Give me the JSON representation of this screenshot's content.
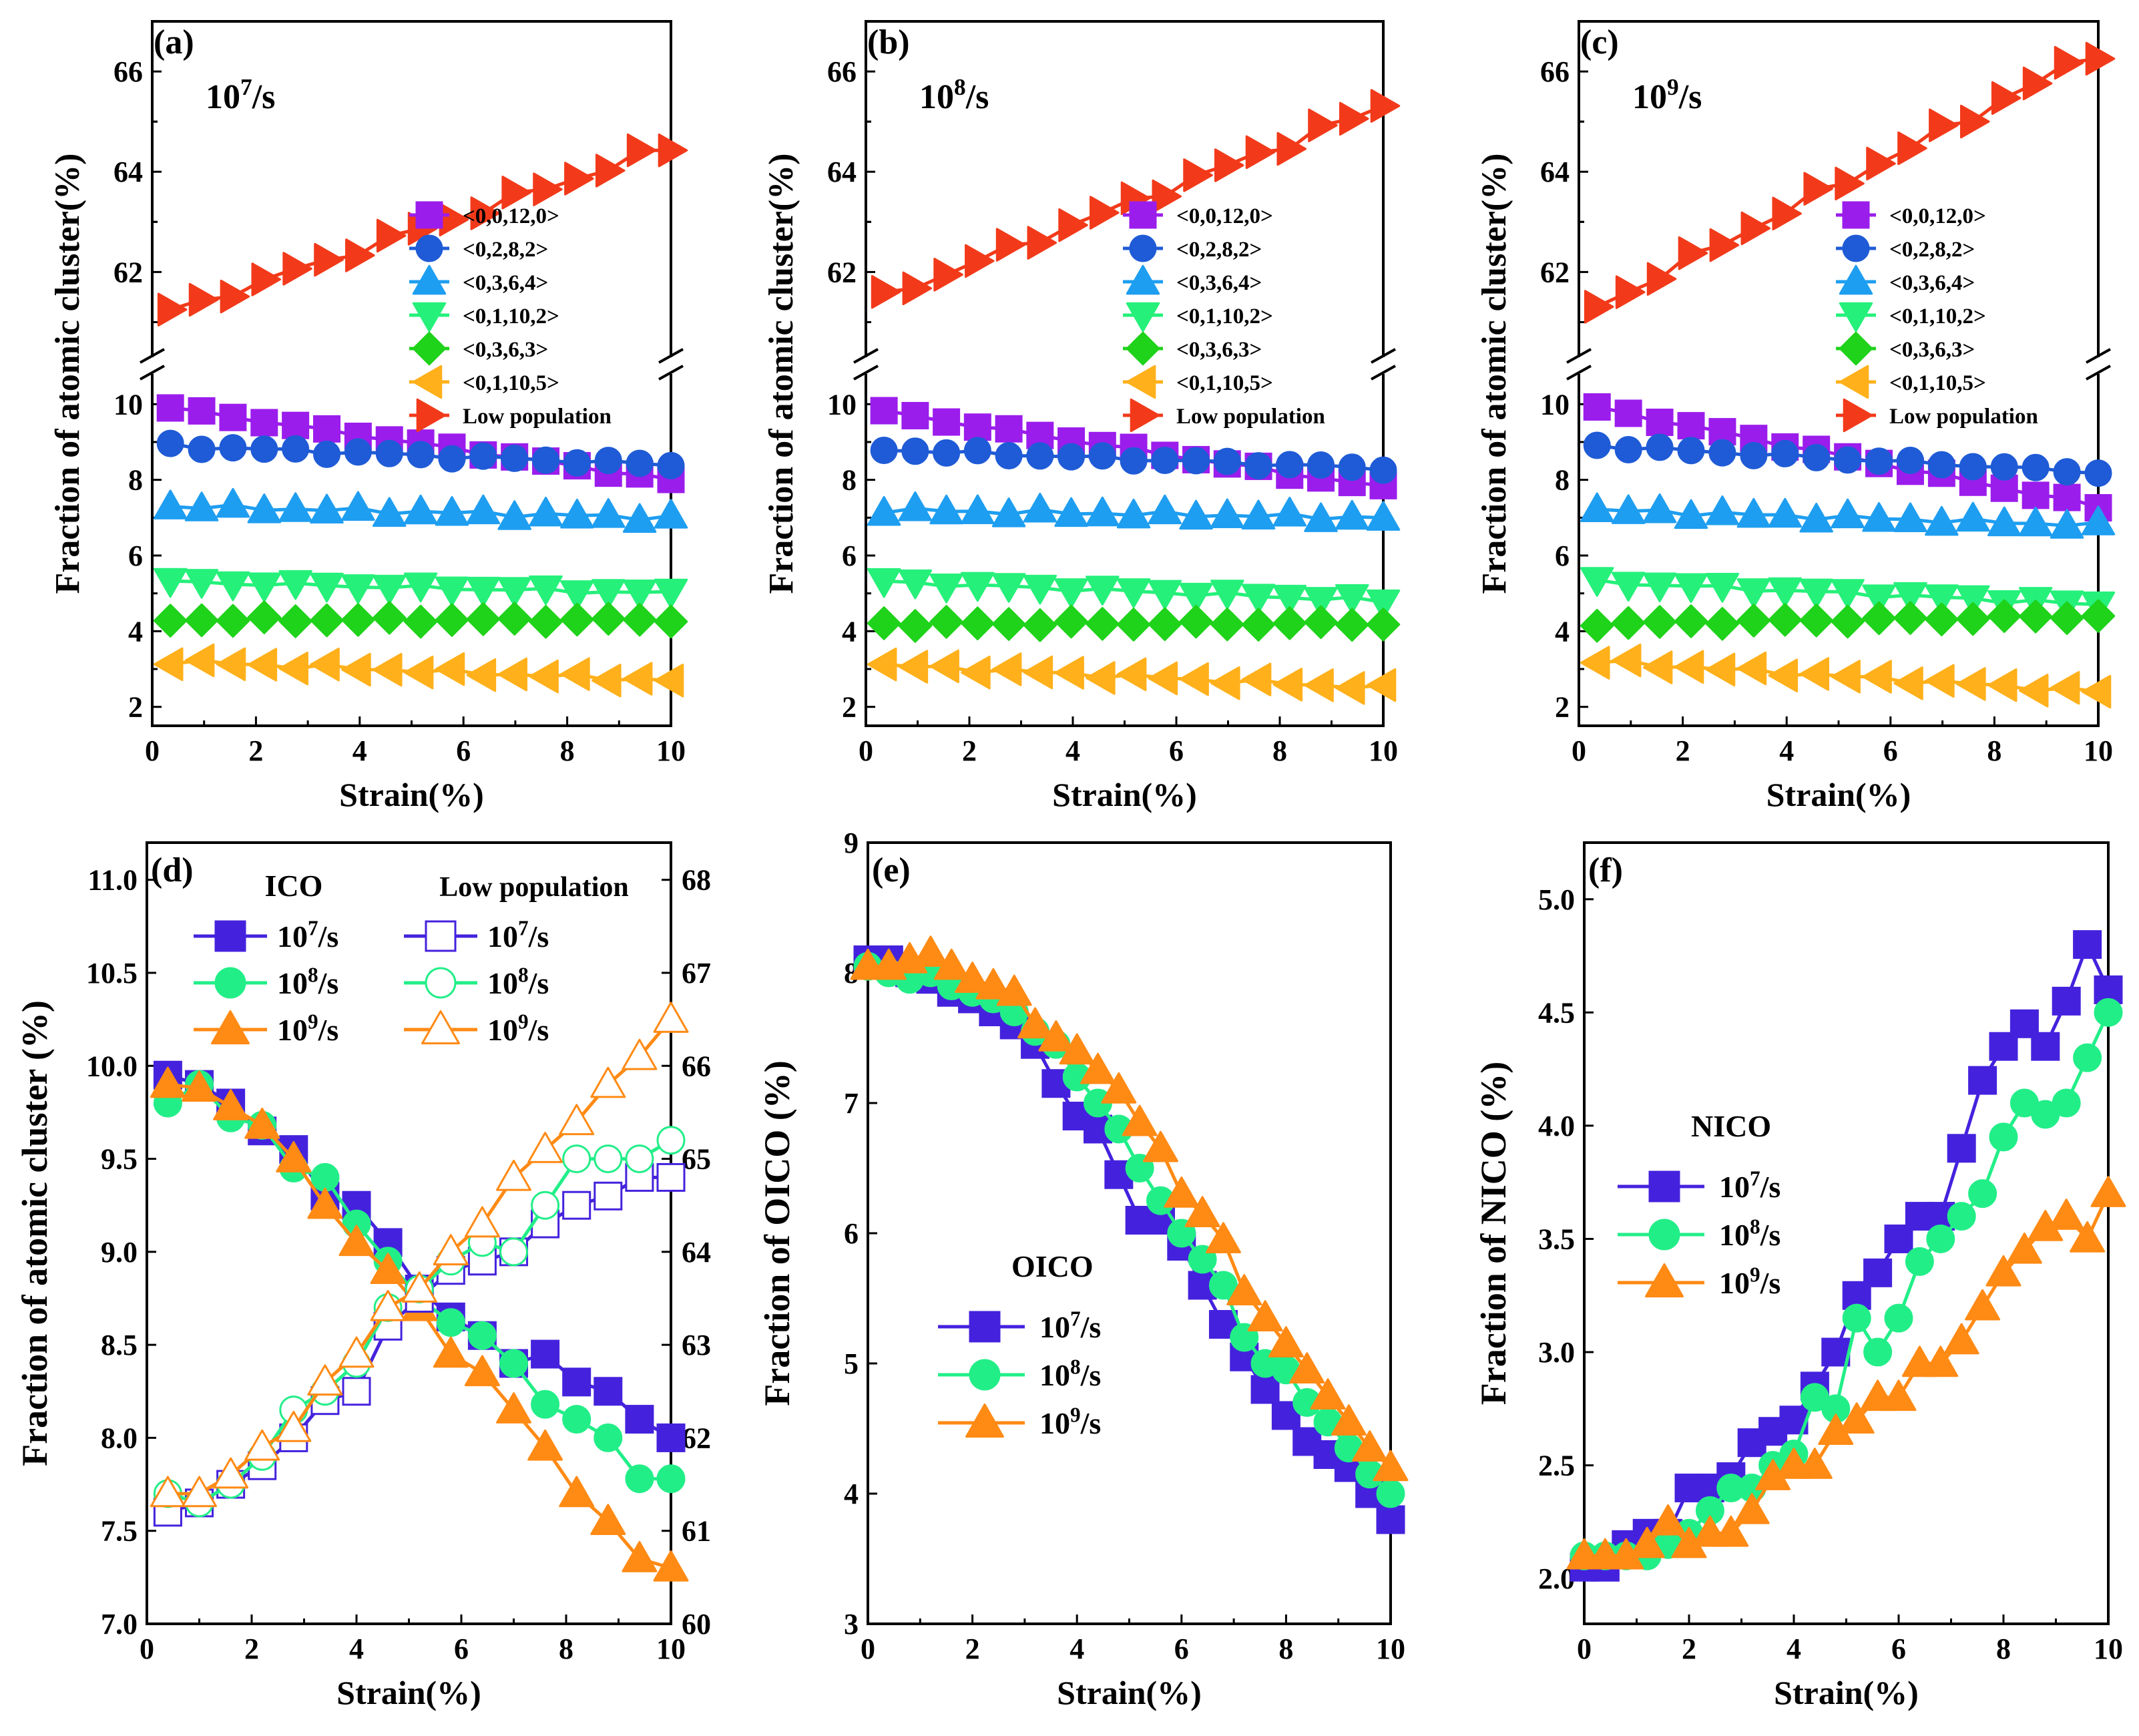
{
  "colors": {
    "purple": "#9b1dec",
    "blue": "#1f5bd6",
    "cyan": "#1e9ef0",
    "green": "#25f07a",
    "darkgreen": "#1fd21a",
    "orange": "#ffb01a",
    "red": "#f23a1a",
    "violet": "#4422dd",
    "mint": "#22ee88",
    "amber": "#ff8a14"
  },
  "chart_data": [
    {
      "panel": "(a)",
      "type": "line",
      "rate_label": "10",
      "rate_exp": "7",
      "rate_unit": "/s",
      "xlabel": "Strain(%)",
      "ylabel": "Fraction of atomic cluster(%)",
      "xlim": [
        0,
        10
      ],
      "xticks": [
        "0",
        "2",
        "4",
        "6",
        "8",
        "10"
      ],
      "ylim_bottom": [
        1.5,
        10.8
      ],
      "yticks_bottom": [
        "2",
        "4",
        "6",
        "8",
        "10"
      ],
      "ylim_top": [
        60.3,
        67
      ],
      "yticks_top": [
        "62",
        "64",
        "66"
      ],
      "legend": [
        "<0,0,12,0>",
        "<0,2,8,2>",
        "<0,3,6,4>",
        "<0,1,10,2>",
        "<0,3,6,3>",
        "<0,1,10,5>",
        "Low population"
      ],
      "series": [
        {
          "name": "<0,0,12,0>",
          "axis": "bottom",
          "marker": "square",
          "color": "purple",
          "start": 9.9,
          "end": 8.0
        },
        {
          "name": "<0,2,8,2>",
          "axis": "bottom",
          "marker": "circle",
          "color": "blue",
          "start": 8.9,
          "end": 8.4
        },
        {
          "name": "<0,3,6,4>",
          "axis": "bottom",
          "marker": "tri-up",
          "color": "cyan",
          "start": 7.3,
          "end": 7.0
        },
        {
          "name": "<0,1,10,2>",
          "axis": "bottom",
          "marker": "tri-down",
          "color": "green",
          "start": 5.3,
          "end": 5.0
        },
        {
          "name": "<0,3,6,3>",
          "axis": "bottom",
          "marker": "diamond",
          "color": "darkgreen",
          "start": 4.3,
          "end": 4.3
        },
        {
          "name": "<0,1,10,5>",
          "axis": "bottom",
          "marker": "tri-left",
          "color": "orange",
          "start": 3.2,
          "end": 2.7
        },
        {
          "name": "Low population",
          "axis": "top",
          "marker": "tri-right",
          "color": "red",
          "start": 61.2,
          "end": 64.5
        }
      ]
    },
    {
      "panel": "(b)",
      "type": "line",
      "rate_label": "10",
      "rate_exp": "8",
      "rate_unit": "/s",
      "xlabel": "Strain(%)",
      "ylabel": "Fraction of atomic cluster(%)",
      "xlim": [
        0,
        10
      ],
      "xticks": [
        "0",
        "2",
        "4",
        "6",
        "8",
        "10"
      ],
      "ylim_bottom": [
        1.5,
        10.8
      ],
      "yticks_bottom": [
        "2",
        "4",
        "6",
        "8",
        "10"
      ],
      "ylim_top": [
        60.3,
        67
      ],
      "yticks_top": [
        "62",
        "64",
        "66"
      ],
      "legend": [
        "<0,0,12,0>",
        "<0,2,8,2>",
        "<0,3,6,4>",
        "<0,1,10,2>",
        "<0,3,6,3>",
        "<0,1,10,5>",
        "Low population"
      ],
      "series": [
        {
          "name": "<0,0,12,0>",
          "axis": "bottom",
          "marker": "square",
          "color": "purple",
          "start": 9.8,
          "end": 7.8
        },
        {
          "name": "<0,2,8,2>",
          "axis": "bottom",
          "marker": "circle",
          "color": "blue",
          "start": 8.8,
          "end": 8.3
        },
        {
          "name": "<0,3,6,4>",
          "axis": "bottom",
          "marker": "tri-up",
          "color": "cyan",
          "start": 7.2,
          "end": 7.0
        },
        {
          "name": "<0,1,10,2>",
          "axis": "bottom",
          "marker": "tri-down",
          "color": "green",
          "start": 5.3,
          "end": 4.8
        },
        {
          "name": "<0,3,6,3>",
          "axis": "bottom",
          "marker": "diamond",
          "color": "darkgreen",
          "start": 4.2,
          "end": 4.2
        },
        {
          "name": "<0,1,10,5>",
          "axis": "bottom",
          "marker": "tri-left",
          "color": "orange",
          "start": 3.1,
          "end": 2.5
        },
        {
          "name": "Low population",
          "axis": "top",
          "marker": "tri-right",
          "color": "red",
          "start": 61.5,
          "end": 65.3
        }
      ]
    },
    {
      "panel": "(c)",
      "type": "line",
      "rate_label": "10",
      "rate_exp": "9",
      "rate_unit": "/s",
      "xlabel": "Strain(%)",
      "ylabel": "Fraction of atomic cluster(%)",
      "xlim": [
        0,
        10
      ],
      "xticks": [
        "0",
        "2",
        "4",
        "6",
        "8",
        "10"
      ],
      "ylim_bottom": [
        1.5,
        10.8
      ],
      "yticks_bottom": [
        "2",
        "4",
        "6",
        "8",
        "10"
      ],
      "ylim_top": [
        60.3,
        67
      ],
      "yticks_top": [
        "62",
        "64",
        "66"
      ],
      "legend": [
        "<0,0,12,0>",
        "<0,2,8,2>",
        "<0,3,6,4>",
        "<0,1,10,2>",
        "<0,3,6,3>",
        "<0,1,10,5>",
        "Low population"
      ],
      "series": [
        {
          "name": "<0,0,12,0>",
          "axis": "bottom",
          "marker": "square",
          "color": "purple",
          "start": 9.9,
          "end": 7.3
        },
        {
          "name": "<0,2,8,2>",
          "axis": "bottom",
          "marker": "circle",
          "color": "blue",
          "start": 8.9,
          "end": 8.2
        },
        {
          "name": "<0,3,6,4>",
          "axis": "bottom",
          "marker": "tri-up",
          "color": "cyan",
          "start": 7.2,
          "end": 6.8
        },
        {
          "name": "<0,1,10,2>",
          "axis": "bottom",
          "marker": "tri-down",
          "color": "green",
          "start": 5.3,
          "end": 4.7
        },
        {
          "name": "<0,3,6,3>",
          "axis": "bottom",
          "marker": "diamond",
          "color": "darkgreen",
          "start": 4.2,
          "end": 4.4
        },
        {
          "name": "<0,1,10,5>",
          "axis": "bottom",
          "marker": "tri-left",
          "color": "orange",
          "start": 3.2,
          "end": 2.4
        },
        {
          "name": "Low population",
          "axis": "top",
          "marker": "tri-right",
          "color": "red",
          "start": 61.3,
          "end": 66.4
        }
      ]
    },
    {
      "panel": "(d)",
      "type": "line",
      "xlabel": "Strain(%)",
      "ylabel": "Fraction of atomic cluster (%)",
      "xlim": [
        0,
        10
      ],
      "xticks": [
        "0",
        "2",
        "4",
        "6",
        "8",
        "10"
      ],
      "ylim": [
        7.0,
        11.2
      ],
      "yticks": [
        "7.0",
        "7.5",
        "8.0",
        "8.5",
        "9.0",
        "9.5",
        "10.0",
        "10.5",
        "11.0"
      ],
      "y2lim": [
        60,
        68.4
      ],
      "y2ticks": [
        "60",
        "61",
        "62",
        "63",
        "64",
        "65",
        "66",
        "67",
        "68"
      ],
      "legend_title_left": "ICO",
      "legend_title_right": "Low population",
      "legend_rate_base": "10",
      "legend_rate_unit": "/s",
      "x": [
        0.4,
        1.0,
        1.6,
        2.2,
        2.8,
        3.4,
        4.0,
        4.6,
        5.2,
        5.8,
        6.4,
        7.0,
        7.6,
        8.2,
        8.8,
        9.4,
        10.0
      ],
      "series": [
        {
          "name": "ICO 10^7/s",
          "axis": "left",
          "marker": "square",
          "filled": true,
          "color": "violet",
          "exp": "7",
          "values": [
            9.95,
            9.9,
            9.8,
            9.65,
            9.55,
            9.3,
            9.25,
            9.05,
            8.8,
            8.65,
            8.55,
            8.4,
            8.45,
            8.3,
            8.25,
            8.1,
            8.0
          ]
        },
        {
          "name": "ICO 10^8/s",
          "axis": "left",
          "marker": "circle",
          "filled": true,
          "color": "mint",
          "exp": "8",
          "values": [
            9.8,
            9.9,
            9.72,
            9.68,
            9.45,
            9.4,
            9.15,
            8.95,
            8.75,
            8.62,
            8.55,
            8.4,
            8.18,
            8.1,
            8.0,
            7.78,
            7.78
          ]
        },
        {
          "name": "ICO 10^9/s",
          "axis": "left",
          "marker": "tri-up",
          "filled": true,
          "color": "amber",
          "exp": "9",
          "values": [
            9.9,
            9.88,
            9.78,
            9.68,
            9.5,
            9.25,
            9.05,
            8.9,
            8.7,
            8.45,
            8.35,
            8.15,
            7.95,
            7.7,
            7.55,
            7.35,
            7.3
          ]
        },
        {
          "name": "Low population 10^7/s",
          "axis": "right",
          "marker": "square",
          "filled": false,
          "color": "violet",
          "exp": "7",
          "values": [
            61.2,
            61.3,
            61.5,
            61.7,
            62.0,
            62.4,
            62.5,
            63.2,
            63.5,
            63.8,
            63.9,
            64.0,
            64.3,
            64.5,
            64.6,
            64.8,
            64.8
          ]
        },
        {
          "name": "Low population 10^8/s",
          "axis": "right",
          "marker": "circle",
          "filled": false,
          "color": "mint",
          "exp": "8",
          "values": [
            61.4,
            61.3,
            61.5,
            61.8,
            62.3,
            62.5,
            62.8,
            63.4,
            63.6,
            63.9,
            64.1,
            64.0,
            64.5,
            65.0,
            65.0,
            65.0,
            65.2
          ]
        },
        {
          "name": "Low population 10^9/s",
          "axis": "right",
          "marker": "tri-up",
          "filled": false,
          "color": "amber",
          "exp": "9",
          "values": [
            61.4,
            61.4,
            61.6,
            61.9,
            62.1,
            62.6,
            62.9,
            63.4,
            63.6,
            64.0,
            64.3,
            64.8,
            65.1,
            65.4,
            65.8,
            66.1,
            66.5
          ]
        }
      ]
    },
    {
      "panel": "(e)",
      "type": "line",
      "xlabel": "Strain(%)",
      "ylabel": "Fraction of OICO (%)",
      "xlim": [
        0,
        10
      ],
      "xticks": [
        "0",
        "2",
        "4",
        "6",
        "8",
        "10"
      ],
      "ylim": [
        3,
        9
      ],
      "yticks": [
        "3",
        "4",
        "5",
        "6",
        "7",
        "8",
        "9"
      ],
      "legend_title": "OICO",
      "legend_rate_base": "10",
      "legend_rate_unit": "/s",
      "x": [
        0.0,
        0.4,
        0.8,
        1.2,
        1.6,
        2.0,
        2.4,
        2.8,
        3.2,
        3.6,
        4.0,
        4.4,
        4.8,
        5.2,
        5.6,
        6.0,
        6.4,
        6.8,
        7.2,
        7.6,
        8.0,
        8.4,
        8.8,
        9.2,
        9.6,
        10.0
      ],
      "series": [
        {
          "name": "10^7/s",
          "marker": "square",
          "color": "violet",
          "exp": "7",
          "values": [
            8.1,
            8.1,
            8.0,
            7.95,
            7.85,
            7.8,
            7.7,
            7.6,
            7.45,
            7.15,
            6.9,
            6.8,
            6.45,
            6.1,
            6.1,
            5.9,
            5.6,
            5.3,
            5.05,
            4.8,
            4.6,
            4.4,
            4.3,
            4.2,
            4.0,
            3.8
          ]
        },
        {
          "name": "10^8/s",
          "marker": "circle",
          "color": "mint",
          "exp": "8",
          "values": [
            8.05,
            8.0,
            7.95,
            8.0,
            7.9,
            7.85,
            7.8,
            7.7,
            7.55,
            7.45,
            7.2,
            7.0,
            6.8,
            6.5,
            6.25,
            6.0,
            5.8,
            5.6,
            5.2,
            5.0,
            4.95,
            4.7,
            4.55,
            4.35,
            4.15,
            4.0
          ]
        },
        {
          "name": "10^9/s",
          "marker": "tri-up",
          "color": "amber",
          "exp": "9",
          "values": [
            8.05,
            8.05,
            8.1,
            8.15,
            8.05,
            7.95,
            7.9,
            7.85,
            7.6,
            7.5,
            7.4,
            7.25,
            7.1,
            6.85,
            6.65,
            6.3,
            6.15,
            5.95,
            5.55,
            5.35,
            5.15,
            4.95,
            4.75,
            4.55,
            4.35,
            4.2
          ]
        }
      ]
    },
    {
      "panel": "(f)",
      "type": "line",
      "xlabel": "Strain(%)",
      "ylabel": "Fraction of NICO (%)",
      "xlim": [
        0,
        10
      ],
      "xticks": [
        "0",
        "2",
        "4",
        "6",
        "8",
        "10"
      ],
      "ylim": [
        1.8,
        5.25
      ],
      "yticks": [
        "2.0",
        "2.5",
        "3.0",
        "3.5",
        "4.0",
        "4.5",
        "5.0"
      ],
      "legend_title": "NICO",
      "legend_rate_base": "10",
      "legend_rate_unit": "/s",
      "x": [
        0.0,
        0.4,
        0.8,
        1.2,
        1.6,
        2.0,
        2.4,
        2.8,
        3.2,
        3.6,
        4.0,
        4.4,
        4.8,
        5.2,
        5.6,
        6.0,
        6.4,
        6.8,
        7.2,
        7.6,
        8.0,
        8.4,
        8.8,
        9.2,
        9.6,
        10.0
      ],
      "series": [
        {
          "name": "10^7/s",
          "marker": "square",
          "color": "violet",
          "exp": "7",
          "values": [
            2.05,
            2.05,
            2.15,
            2.2,
            2.2,
            2.4,
            2.4,
            2.45,
            2.6,
            2.65,
            2.7,
            2.85,
            3.0,
            3.25,
            3.35,
            3.5,
            3.6,
            3.6,
            3.9,
            4.2,
            4.35,
            4.45,
            4.35,
            4.55,
            4.8,
            4.6
          ]
        },
        {
          "name": "10^8/s",
          "marker": "circle",
          "color": "mint",
          "exp": "8",
          "values": [
            2.1,
            2.1,
            2.1,
            2.1,
            2.15,
            2.2,
            2.3,
            2.4,
            2.4,
            2.5,
            2.55,
            2.8,
            2.75,
            3.15,
            3.0,
            3.15,
            3.4,
            3.5,
            3.6,
            3.7,
            3.95,
            4.1,
            4.05,
            4.1,
            4.3,
            4.5
          ]
        },
        {
          "name": "10^9/s",
          "marker": "tri-up",
          "color": "amber",
          "exp": "9",
          "values": [
            2.1,
            2.1,
            2.1,
            2.15,
            2.25,
            2.15,
            2.2,
            2.2,
            2.3,
            2.45,
            2.5,
            2.5,
            2.65,
            2.7,
            2.8,
            2.8,
            2.95,
            2.95,
            3.05,
            3.2,
            3.35,
            3.45,
            3.55,
            3.6,
            3.5,
            3.7
          ]
        }
      ]
    }
  ]
}
